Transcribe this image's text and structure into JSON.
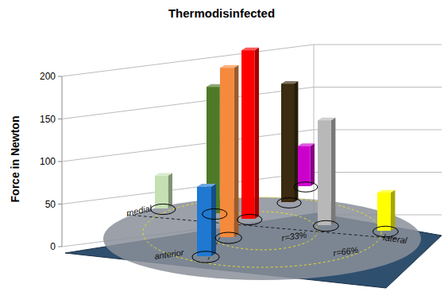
{
  "chart_data": {
    "type": "bar",
    "title": "Thermodisinfected",
    "y_label": "Force in Newton",
    "categories": [
      null,
      null,
      null,
      null,
      null,
      null,
      null,
      null,
      null
    ],
    "values": [
      35,
      135,
      68,
      170,
      180,
      130,
      45,
      110,
      40
    ],
    "colors": [
      "#c5e0b3",
      "#4e7a27",
      "#1f78d1",
      "#f58a3c",
      "#ff0000",
      "#3b2b10",
      "#cc00cc",
      "#b8b8b8",
      "#ffff00"
    ],
    "ylim": [
      0,
      200
    ],
    "yticks": [
      0,
      50,
      100,
      150,
      200
    ],
    "grid": true,
    "annotations": [
      "medial",
      "lateral",
      "anterior",
      "r=33%",
      "r=66%"
    ]
  }
}
